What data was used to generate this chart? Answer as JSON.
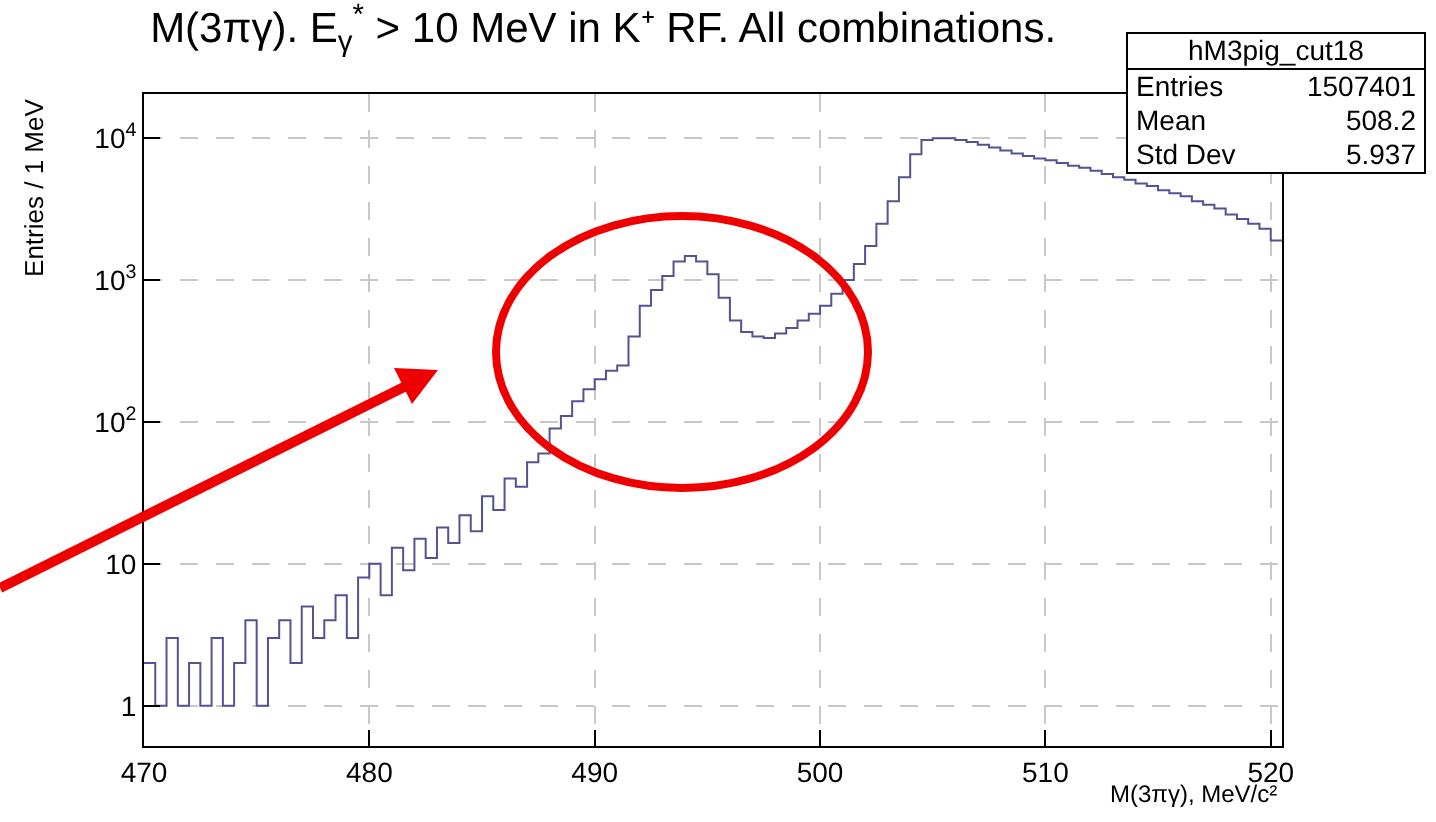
{
  "chart_data": {
    "type": "histogram",
    "title": "M(3πγ). E$_{γ}$$^{*}$ > 10 MeV in K⁺ RF. All combinations.",
    "xlabel": "M(3πγ), MeV/c²",
    "ylabel": "Entries / 1 MeV",
    "annotations": [
      "hM3pig_cut18",
      "Entries",
      "1507401",
      "Mean",
      "508.2",
      "Std Dev",
      "5.937"
    ],
    "bins": [
      470,
      470.5,
      471,
      471.5,
      472,
      472.5,
      473,
      473.5,
      474,
      474.5,
      475,
      475.5,
      476,
      476.5,
      477,
      477.5,
      478,
      478.5,
      479,
      479.5,
      480,
      480.5,
      481,
      481.5,
      482,
      482.5,
      483,
      483.5,
      484,
      484.5,
      485,
      485.5,
      486,
      486.5,
      487,
      487.5,
      488,
      488.5,
      489,
      489.5,
      490,
      490.5,
      491,
      491.5,
      492,
      492.5,
      493,
      493.5,
      494,
      494.5,
      495,
      495.5,
      496,
      496.5,
      497,
      497.5,
      498,
      498.5,
      499,
      499.5,
      500,
      500.5,
      501,
      501.5,
      502,
      502.5,
      503,
      503.5,
      504,
      504.5,
      505,
      505.5,
      506,
      506.5,
      507,
      507.5,
      508,
      508.5,
      509,
      509.5,
      510,
      510.5,
      511,
      511.5,
      512,
      512.5,
      513,
      513.5,
      514,
      514.5,
      515,
      515.5,
      516,
      516.5,
      517,
      517.5,
      518,
      518.5,
      519,
      519.5,
      520,
      520.5
    ],
    "values": [
      2,
      1,
      3,
      1,
      2,
      1,
      3,
      1,
      2,
      4,
      1,
      3,
      4,
      2,
      5,
      3,
      4,
      6,
      3,
      8,
      10,
      6,
      13,
      9,
      15,
      11,
      18,
      14,
      22,
      17,
      30,
      24,
      40,
      35,
      52,
      60,
      90,
      110,
      140,
      170,
      200,
      230,
      250,
      400,
      660,
      850,
      1070,
      1350,
      1480,
      1350,
      1100,
      750,
      520,
      430,
      400,
      390,
      420,
      460,
      520,
      580,
      660,
      800,
      1000,
      1300,
      1740,
      2500,
      3600,
      5300,
      7700,
      9700,
      10000,
      10000,
      9700,
      9400,
      9000,
      8600,
      8200,
      7800,
      7500,
      7200,
      7000,
      6700,
      6400,
      6200,
      5900,
      5600,
      5300,
      5100,
      4800,
      4600,
      4300,
      4100,
      3900,
      3600,
      3400,
      3200,
      2900,
      2700,
      2500,
      2300,
      1900
    ],
    "color": "#525294",
    "log": "y",
    "grid": true,
    "xlim": [
      470,
      520.5
    ],
    "xticks": [
      470,
      480,
      490,
      500,
      510,
      520
    ],
    "ylim": [
      0.52,
      20500
    ],
    "yticks": [
      1,
      10,
      {
        "value": 100,
        "label": "10$^{2}$"
      },
      {
        "value": 1000,
        "label": "10$^{3}$"
      },
      {
        "value": 10000,
        "label": "10$^{4}$"
      }
    ]
  }
}
